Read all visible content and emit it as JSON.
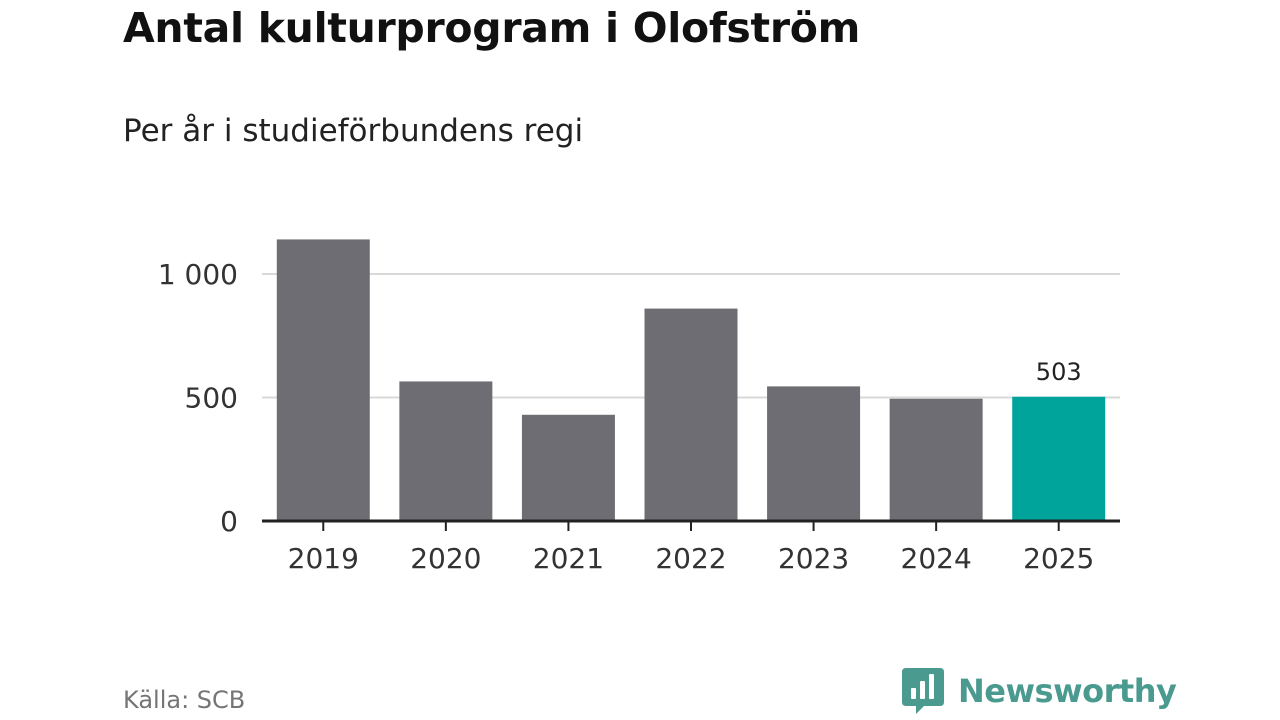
{
  "title": "Antal kulturprogram i Olofström",
  "subtitle": "Per år i studieförbundens regi",
  "source": "Källa: SCB",
  "brand": "Newsworthy",
  "colors": {
    "bar": "#6e6d73",
    "highlight": "#00a49a",
    "grid": "#d9d9d9",
    "axis": "#222222",
    "brand": "#4a9a8f"
  },
  "chart_data": {
    "type": "bar",
    "title": "Antal kulturprogram i Olofström",
    "subtitle": "Per år i studieförbundens regi",
    "categories": [
      "2019",
      "2020",
      "2021",
      "2022",
      "2023",
      "2024",
      "2025"
    ],
    "values": [
      1140,
      565,
      430,
      860,
      545,
      495,
      503
    ],
    "highlight_index": 6,
    "data_labels": [
      {
        "index": 6,
        "text": "503"
      }
    ],
    "yticks": [
      {
        "value": 0,
        "label": "0"
      },
      {
        "value": 500,
        "label": "500"
      },
      {
        "value": 1000,
        "label": "1 000"
      }
    ],
    "ylim": [
      0,
      1200
    ],
    "grid": true,
    "legend": "none"
  }
}
